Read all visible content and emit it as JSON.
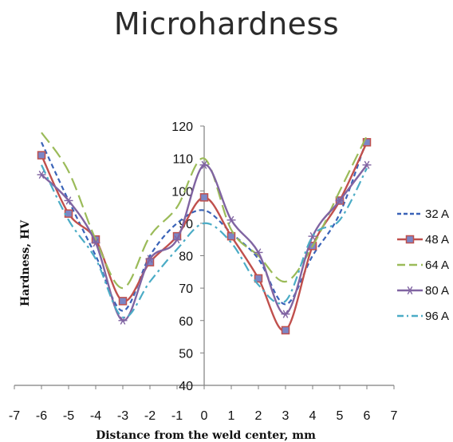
{
  "page_title": "Microhardness",
  "chart_data": {
    "type": "line",
    "title": "",
    "xlabel": "Distance from the weld center, mm",
    "ylabel": "Hardness, HV",
    "xlim": [
      -7,
      7
    ],
    "ylim": [
      40,
      120
    ],
    "x_ticks": [
      -7,
      -6,
      -5,
      -4,
      -3,
      -2,
      -1,
      0,
      1,
      2,
      3,
      4,
      5,
      6,
      7
    ],
    "y_ticks": [
      40,
      50,
      60,
      70,
      80,
      90,
      100,
      110,
      120
    ],
    "x": [
      -6,
      -5,
      -4,
      -3,
      -2,
      -1,
      0,
      1,
      2,
      3,
      4,
      5,
      6
    ],
    "legend_position": "right",
    "series": [
      {
        "name": "32 A",
        "color": "#3a63b8",
        "dash": "short-dash",
        "marker": "none",
        "values": [
          115,
          97,
          80,
          63,
          80,
          90,
          94,
          87,
          79,
          65,
          80,
          93,
          116
        ]
      },
      {
        "name": "48 A",
        "color": "#c0504d",
        "dash": "solid",
        "marker": "square",
        "values": [
          111,
          93,
          85,
          66,
          78,
          86,
          98,
          86,
          73,
          57,
          83,
          97,
          115
        ]
      },
      {
        "name": "64 A",
        "color": "#9bbb59",
        "dash": "long-dash",
        "marker": "none",
        "values": [
          118,
          106,
          85,
          70,
          86,
          95,
          110,
          88,
          80,
          72,
          83,
          100,
          117
        ]
      },
      {
        "name": "80 A",
        "color": "#8064a2",
        "dash": "solid",
        "marker": "star",
        "values": [
          105,
          97,
          84,
          60,
          79,
          85,
          108,
          91,
          81,
          62,
          86,
          97,
          108
        ]
      },
      {
        "name": "96 A",
        "color": "#4bacc6",
        "dash": "dash-dot",
        "marker": "none",
        "values": [
          108,
          91,
          79,
          61,
          72,
          82,
          90,
          84,
          71,
          66,
          86,
          91,
          107
        ]
      }
    ]
  }
}
